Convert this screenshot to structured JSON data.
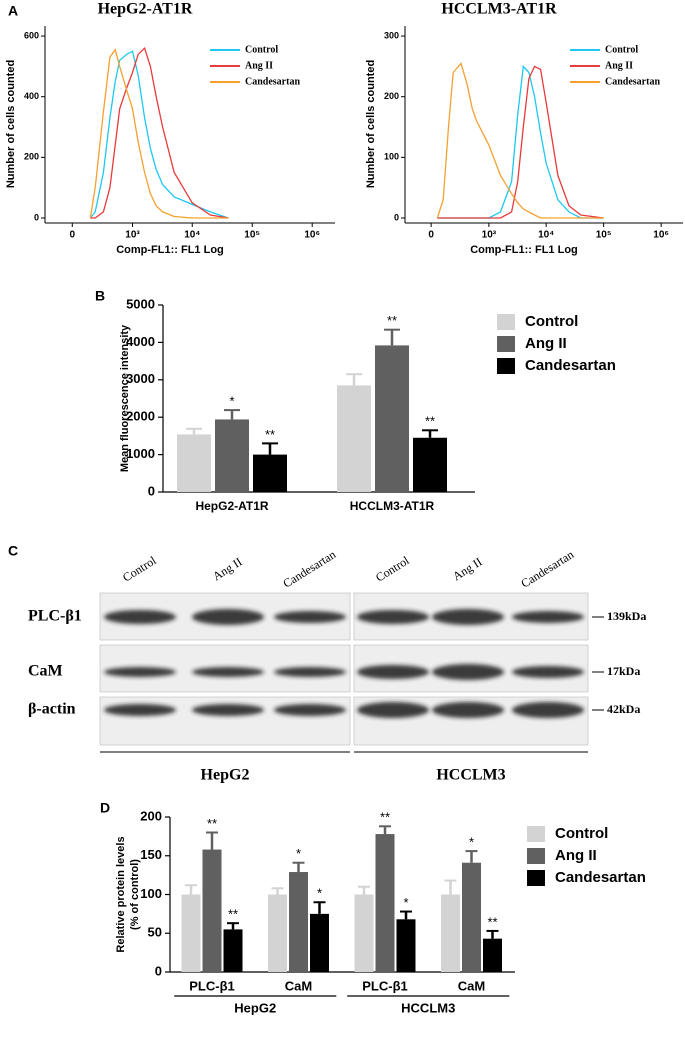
{
  "chart_data": [
    {
      "type": "line",
      "panel": "A",
      "title": "HepG2-AT1R",
      "x_label": "Comp-FL1:: FL1 Log",
      "y_label": "Number of cells counted",
      "xscale": "biexponential",
      "xlim": [
        -250,
        2400000
      ],
      "ylim": [
        0,
        620
      ],
      "xticks": [
        0,
        {
          "value": 1000,
          "label": "10³"
        },
        {
          "value": 10000,
          "label": "10⁴"
        },
        {
          "value": 100000,
          "label": "10⁵"
        },
        {
          "value": 1000000,
          "label": "10⁶"
        }
      ],
      "yticks": [
        0,
        200,
        400,
        600
      ],
      "x": [
        150,
        200,
        300,
        400,
        500,
        600,
        800,
        1000,
        1250,
        1600,
        2000,
        2500,
        3200,
        5000,
        10000,
        20000,
        40000
      ],
      "series": [
        {
          "name": "Control",
          "color": "#1ec8f0",
          "values": [
            0,
            20,
            150,
            330,
            450,
            520,
            540,
            550,
            470,
            330,
            230,
            160,
            110,
            70,
            45,
            20,
            0
          ]
        },
        {
          "name": "Ang II",
          "color": "#e83a3a",
          "values": [
            0,
            0,
            20,
            100,
            240,
            360,
            430,
            480,
            540,
            560,
            500,
            400,
            300,
            150,
            50,
            10,
            0
          ]
        },
        {
          "name": "Candesartan",
          "color": "#f5a030",
          "values": [
            0,
            100,
            350,
            530,
            555,
            500,
            420,
            360,
            250,
            150,
            80,
            40,
            20,
            5,
            0,
            0,
            0
          ]
        }
      ],
      "legend": "top-right"
    },
    {
      "type": "line",
      "title": "HCCLM3-AT1R",
      "x_label": "Comp-FL1:: FL1 Log",
      "y_label": "Number of cells counted",
      "xscale": "biexponential",
      "xlim": [
        -250,
        2400000
      ],
      "ylim": [
        0,
        310
      ],
      "xticks": [
        0,
        {
          "value": 1000,
          "label": "10³"
        },
        {
          "value": 10000,
          "label": "10⁴"
        },
        {
          "value": 100000,
          "label": "10⁵"
        },
        {
          "value": 1000000,
          "label": "10⁶"
        }
      ],
      "yticks": [
        0,
        100,
        200,
        300
      ],
      "x": [
        50,
        100,
        150,
        200,
        300,
        400,
        500,
        600,
        1000,
        1600,
        2500,
        3200,
        4000,
        5000,
        6300,
        8000,
        10000,
        16000,
        25000,
        40000,
        100000
      ],
      "series": [
        {
          "name": "Control",
          "color": "#1ec8f0",
          "values": [
            0,
            0,
            0,
            0,
            0,
            0,
            0,
            0,
            0,
            10,
            60,
            170,
            250,
            240,
            200,
            140,
            90,
            30,
            10,
            0,
            0
          ]
        },
        {
          "name": "Ang II",
          "color": "#e83a3a",
          "values": [
            0,
            0,
            0,
            0,
            0,
            0,
            0,
            0,
            0,
            0,
            10,
            60,
            150,
            230,
            250,
            245,
            190,
            70,
            20,
            5,
            0
          ]
        },
        {
          "name": "Candesartan",
          "color": "#f5a030",
          "values": [
            0,
            30,
            150,
            240,
            255,
            220,
            180,
            160,
            120,
            70,
            40,
            25,
            15,
            10,
            5,
            0,
            0,
            0,
            0,
            0,
            0
          ]
        }
      ],
      "legend": "top-right"
    },
    {
      "type": "bar",
      "panel": "B",
      "y_label": [
        "Mean fluorescence intensity"
      ],
      "categories": [
        "HepG2-AT1R",
        "HCCLM3-AT1R"
      ],
      "ylim": [
        0,
        5000
      ],
      "yticks": [
        0,
        1000,
        2000,
        3000,
        4000,
        5000
      ],
      "series": [
        {
          "name": "Control",
          "color": "#d3d3d3",
          "values": [
            1540,
            2850
          ],
          "errors": [
            150,
            300
          ],
          "significance": [
            null,
            null
          ]
        },
        {
          "name": "Ang II",
          "color": "#606060",
          "values": [
            1940,
            3920
          ],
          "errors": [
            250,
            420
          ],
          "significance": [
            "*",
            "**"
          ]
        },
        {
          "name": "Candesartan",
          "color": "#000000",
          "values": [
            1000,
            1450
          ],
          "errors": [
            300,
            200
          ],
          "significance": [
            "**",
            "**"
          ]
        }
      ],
      "legend": "right"
    },
    {
      "type": "bar",
      "panel": "D",
      "y_label": [
        "Relative protein levels",
        "(% of control)"
      ],
      "categories": [
        "PLC-β1",
        "CaM",
        "PLC-β1",
        "CaM"
      ],
      "groups": [
        "HepG2",
        "HCCLM3"
      ],
      "ylim": [
        0,
        200
      ],
      "yticks": [
        0,
        50,
        100,
        150,
        200
      ],
      "series": [
        {
          "name": "Control",
          "color": "#d3d3d3",
          "values": [
            100,
            100,
            100,
            100
          ],
          "errors": [
            12,
            8,
            10,
            18
          ],
          "significance": [
            null,
            null,
            null,
            null
          ]
        },
        {
          "name": "Ang II",
          "color": "#606060",
          "values": [
            158,
            129,
            178,
            141
          ],
          "errors": [
            22,
            12,
            10,
            15
          ],
          "significance": [
            "**",
            "*",
            "**",
            "*"
          ]
        },
        {
          "name": "Candesartan",
          "color": "#000000",
          "values": [
            55,
            75,
            68,
            43
          ],
          "errors": [
            8,
            15,
            10,
            10
          ],
          "significance": [
            "**",
            "*",
            "*",
            "**"
          ]
        }
      ],
      "legend": "right"
    }
  ],
  "blot": {
    "panel": "C",
    "lanes": [
      "Control",
      "Ang II",
      "Candesartan"
    ],
    "cell_lines": [
      "HepG2",
      "HCCLM3"
    ],
    "proteins": [
      {
        "name": "PLC-β1",
        "size": "139kDa"
      },
      {
        "name": "CaM",
        "size": "17kDa"
      },
      {
        "name": "β-actin",
        "size": "42kDa"
      }
    ]
  }
}
